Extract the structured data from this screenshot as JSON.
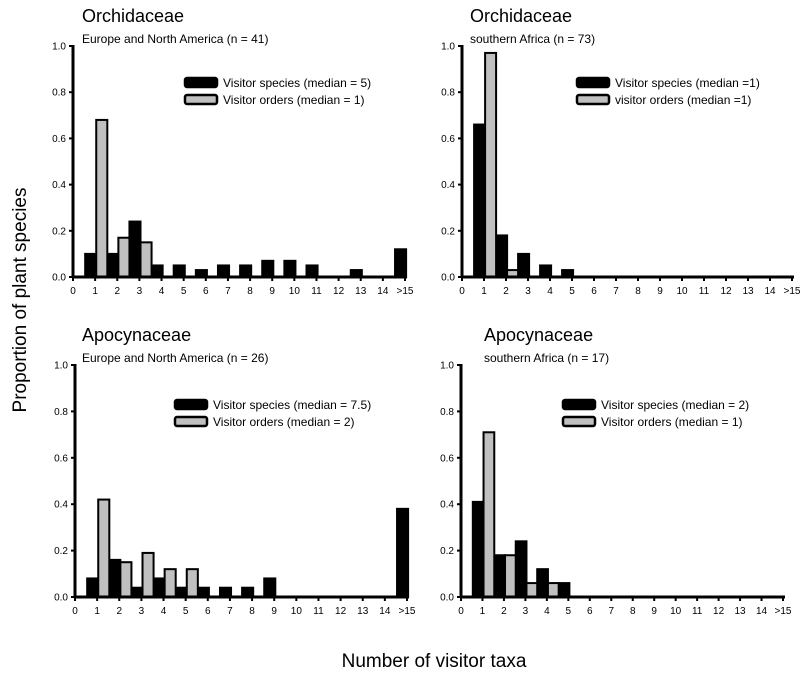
{
  "chart_data": [
    {
      "type": "bar",
      "title": "Orchidaceae",
      "subtitle": "Europe and North America (n = 41)",
      "categories": [
        "0",
        "1",
        "2",
        "3",
        "4",
        "5",
        "6",
        "7",
        "8",
        "9",
        "10",
        "11",
        "12",
        "13",
        "14",
        ">15"
      ],
      "ylim": [
        0,
        1.0
      ],
      "yticks": [
        "0.0",
        "0.2",
        "0.4",
        "0.6",
        "0.8",
        "1.0"
      ],
      "legend_position": "top-right",
      "series": [
        {
          "name": "Visitor species (median = 5)",
          "color": "#000000",
          "values": [
            0,
            0.1,
            0.1,
            0.24,
            0.05,
            0.05,
            0.03,
            0.05,
            0.05,
            0.07,
            0.07,
            0.05,
            0,
            0.03,
            0,
            0.12
          ]
        },
        {
          "name": "Visitor orders (median = 1)",
          "color": "#c0c0c0",
          "values": [
            0,
            0.68,
            0.17,
            0.15,
            0,
            0,
            0,
            0,
            0,
            0,
            0,
            0,
            0,
            0,
            0,
            0
          ]
        }
      ]
    },
    {
      "type": "bar",
      "title": "Orchidaceae",
      "subtitle": "southern Africa (n = 73)",
      "categories": [
        "0",
        "1",
        "2",
        "3",
        "4",
        "5",
        "6",
        "7",
        "8",
        "9",
        "10",
        "11",
        "12",
        "13",
        "14",
        ">15"
      ],
      "ylim": [
        0,
        1.0
      ],
      "yticks": [
        "0.0",
        "0.2",
        "0.4",
        "0.6",
        "0.8",
        "1.0"
      ],
      "legend_position": "top-right",
      "series": [
        {
          "name": "Visitor species (median =1)",
          "color": "#000000",
          "values": [
            0,
            0.66,
            0.18,
            0.1,
            0.05,
            0.03,
            0,
            0,
            0,
            0,
            0,
            0,
            0,
            0,
            0,
            0
          ]
        },
        {
          "name": "visitor orders (median =1)",
          "color": "#c0c0c0",
          "values": [
            0,
            0.97,
            0.03,
            0,
            0,
            0,
            0,
            0,
            0,
            0,
            0,
            0,
            0,
            0,
            0,
            0
          ]
        }
      ]
    },
    {
      "type": "bar",
      "title": "Apocynaceae",
      "subtitle": "Europe and North America (n = 26)",
      "categories": [
        "0",
        "1",
        "2",
        "3",
        "4",
        "5",
        "6",
        "7",
        "8",
        "9",
        "10",
        "11",
        "12",
        "13",
        "14",
        ">15"
      ],
      "ylim": [
        0,
        1.0
      ],
      "yticks": [
        "0.0",
        "0.2",
        "0.4",
        "0.6",
        "0.8",
        "1.0"
      ],
      "legend_position": "top-right",
      "series": [
        {
          "name": "Visitor species (median =  7.5)",
          "color": "#000000",
          "values": [
            0,
            0.08,
            0.16,
            0.04,
            0.08,
            0.04,
            0.04,
            0.04,
            0.04,
            0.08,
            0,
            0,
            0,
            0,
            0,
            0.38
          ]
        },
        {
          "name": "Visitor orders (median = 2)",
          "color": "#c0c0c0",
          "values": [
            0,
            0.42,
            0.15,
            0.19,
            0.12,
            0.12,
            0,
            0,
            0,
            0,
            0,
            0,
            0,
            0,
            0,
            0
          ]
        }
      ]
    },
    {
      "type": "bar",
      "title": "Apocynaceae",
      "subtitle": "southern Africa (n = 17)",
      "categories": [
        "0",
        "1",
        "2",
        "3",
        "4",
        "5",
        "6",
        "7",
        "8",
        "9",
        "10",
        "11",
        "12",
        "13",
        "14",
        ">15"
      ],
      "ylim": [
        0,
        1.0
      ],
      "yticks": [
        "0.0",
        "0.2",
        "0.4",
        "0.6",
        "0.8",
        "1.0"
      ],
      "legend_position": "top-right",
      "series": [
        {
          "name": "Visitor species (median = 2)",
          "color": "#000000",
          "values": [
            0,
            0.41,
            0.18,
            0.24,
            0.12,
            0.06,
            0,
            0,
            0,
            0,
            0,
            0,
            0,
            0,
            0,
            0
          ]
        },
        {
          "name": "Visitor orders (median = 1)",
          "color": "#c0c0c0",
          "values": [
            0,
            0.71,
            0.18,
            0.06,
            0.06,
            0,
            0,
            0,
            0,
            0,
            0,
            0,
            0,
            0,
            0,
            0
          ]
        }
      ]
    }
  ],
  "ylabel": "Proportion of plant species",
  "xlabel": "Number of visitor taxa"
}
